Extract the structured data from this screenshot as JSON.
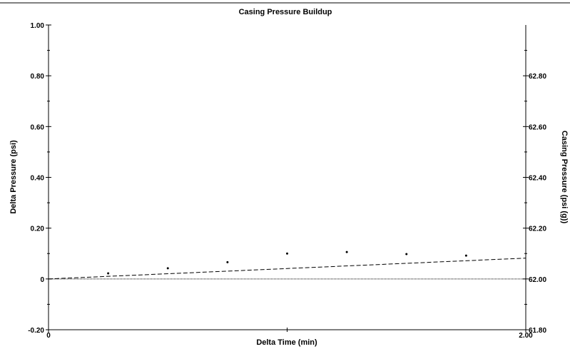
{
  "chart_data": {
    "type": "scatter",
    "title": "Casing Pressure Buildup",
    "xlabel": "Delta Time (min)",
    "ylabel_left": "Delta Pressure (psi)",
    "ylabel_right": "Casing Pressure (psi (g))",
    "xlim": [
      0,
      2.0
    ],
    "ylim_left": [
      -0.2,
      1.0
    ],
    "ylim_right": [
      61.8,
      63.0
    ],
    "x_ticks": [
      {
        "v": 0,
        "label": "0"
      },
      {
        "v": 2.0,
        "label": "2.00"
      }
    ],
    "y_left_ticks": [
      {
        "v": -0.2,
        "label": "-0.20"
      },
      {
        "v": 0,
        "label": "0"
      },
      {
        "v": 0.2,
        "label": "0.20"
      },
      {
        "v": 0.4,
        "label": "0.40"
      },
      {
        "v": 0.6,
        "label": "0.60"
      },
      {
        "v": 0.8,
        "label": "0.80"
      },
      {
        "v": 1.0,
        "label": "1.00"
      }
    ],
    "y_right_ticks": [
      {
        "v": 61.8,
        "label": "61.80"
      },
      {
        "v": 62.0,
        "label": "62.00"
      },
      {
        "v": 62.2,
        "label": "62.20"
      },
      {
        "v": 62.4,
        "label": "62.40"
      },
      {
        "v": 62.6,
        "label": "62.60"
      },
      {
        "v": 62.8,
        "label": "62.80"
      }
    ],
    "series": [
      {
        "points": [
          {
            "x": 0.25,
            "y": 0.022
          },
          {
            "x": 0.5,
            "y": 0.042
          },
          {
            "x": 0.75,
            "y": 0.066
          },
          {
            "x": 1.0,
            "y": 0.1
          },
          {
            "x": 1.25,
            "y": 0.106
          },
          {
            "x": 1.5,
            "y": 0.098
          },
          {
            "x": 1.75,
            "y": 0.092
          }
        ]
      }
    ],
    "trend_line": {
      "x": [
        0,
        2.0
      ],
      "y": [
        0,
        0.082
      ]
    },
    "reference_line": {
      "y": 0
    },
    "grid": false
  }
}
